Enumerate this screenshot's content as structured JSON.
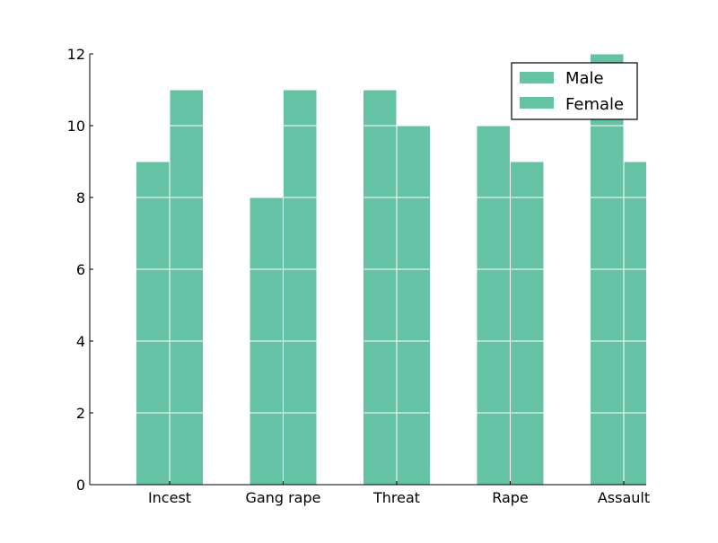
{
  "chart_data": {
    "type": "bar",
    "title": "",
    "xlabel": "",
    "ylabel": "",
    "categories": [
      "Incest",
      "Gang rape",
      "Threat",
      "Rape",
      "Assault"
    ],
    "series": [
      {
        "name": "Male",
        "values": [
          9,
          8,
          11,
          10,
          12
        ]
      },
      {
        "name": "Female",
        "values": [
          11,
          11,
          10,
          9,
          9
        ]
      }
    ],
    "ylim": [
      0,
      12
    ],
    "yticks": [
      0,
      2,
      4,
      6,
      8,
      10,
      12
    ],
    "grid": true,
    "legend_position": "top-right"
  },
  "colors": {
    "bar": "#66c2a5",
    "grid": "#ffffff",
    "axis": "#000000"
  }
}
